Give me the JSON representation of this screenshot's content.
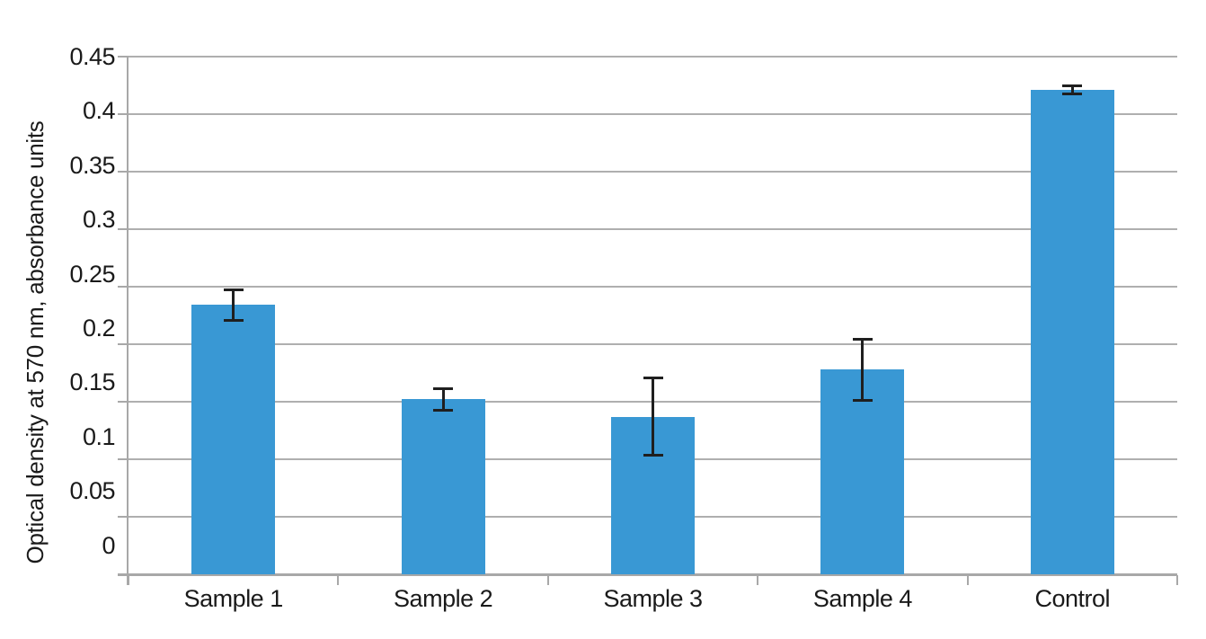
{
  "chart_data": {
    "type": "bar",
    "title": "",
    "categories": [
      "Sample 1",
      "Sample 2",
      "Sample 3",
      "Sample 4",
      "Control"
    ],
    "values": [
      0.234,
      0.152,
      0.137,
      0.178,
      0.421
    ],
    "error_bars": [
      0.014,
      0.01,
      0.034,
      0.027,
      0.004
    ],
    "series": [
      {
        "name": "Optical density",
        "values": [
          0.234,
          0.152,
          0.137,
          0.178,
          0.421
        ],
        "errors": [
          0.014,
          0.01,
          0.034,
          0.027,
          0.004
        ]
      }
    ],
    "xlabel": "",
    "ylabel": "Optical density at 570 nm, absorbance units",
    "ylim": [
      0,
      0.45
    ],
    "ytick_step": 0.05,
    "ytick_labels": [
      "0",
      "0.05",
      "0.1",
      "0.15",
      "0.2",
      "0.25",
      "0.3",
      "0.35",
      "0.4",
      "0.45"
    ],
    "grid": true,
    "legend": false,
    "bar_color": "#3998D4",
    "error_color": "#1f1f1f",
    "grid_color": "#afafaf",
    "axis_color": "#a8a8a8",
    "text_color": "#1a1a1a"
  }
}
